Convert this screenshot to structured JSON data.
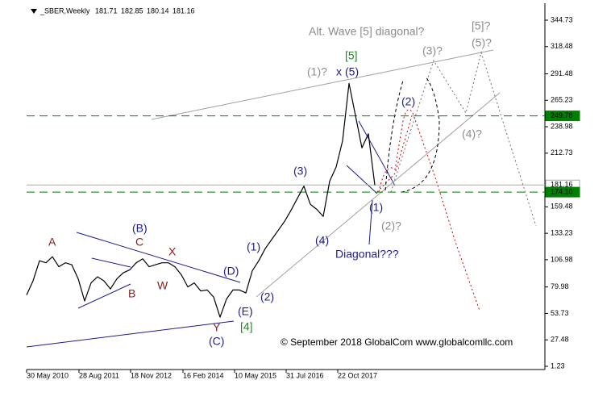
{
  "chart_data": {
    "type": "line",
    "symbol": "_SBER,Weekly",
    "ohlc": [
      181.71,
      182.85,
      180.14,
      181.16
    ],
    "xlim": [
      "2010-05-30",
      "2022-09-25"
    ],
    "xticks": [
      {
        "value": "2010-05-30",
        "label": "30 May 2010"
      },
      {
        "value": "2011-08-28",
        "label": "28 Aug 2011"
      },
      {
        "value": "2012-11-18",
        "label": "18 Nov 2012"
      },
      {
        "value": "2014-02-16",
        "label": "16 Feb 2014"
      },
      {
        "value": "2015-05-10",
        "label": "10 May 2015"
      },
      {
        "value": "2016-07-31",
        "label": "31 Jul 2016"
      },
      {
        "value": "2017-10-22",
        "label": "22 Oct 2017"
      }
    ],
    "ylim": [
      -1.97,
      358.34
    ],
    "yticks": [
      344.73,
      318.48,
      291.48,
      265.23,
      238.98,
      212.73,
      159.48,
      133.23,
      106.98,
      79.98,
      53.73,
      27.48,
      1.23
    ],
    "series": [
      {
        "name": "SBER",
        "color": "#000000",
        "x": [
          "2010-05-30",
          "2010-07-25",
          "2010-09-19",
          "2010-11-14",
          "2011-01-09",
          "2011-03-06",
          "2011-05-01",
          "2011-06-26",
          "2011-08-21",
          "2011-10-16",
          "2011-12-11",
          "2012-02-05",
          "2012-04-01",
          "2012-05-27",
          "2012-07-22",
          "2012-09-16",
          "2012-11-11",
          "2013-01-06",
          "2013-03-03",
          "2013-04-28",
          "2013-06-23",
          "2013-08-18",
          "2013-10-13",
          "2013-12-08",
          "2014-02-02",
          "2014-03-30",
          "2014-05-25",
          "2014-07-20",
          "2014-09-14",
          "2014-11-09",
          "2015-01-04",
          "2015-03-01",
          "2015-04-26",
          "2015-06-21",
          "2015-08-16",
          "2015-10-11",
          "2015-12-06",
          "2016-01-31",
          "2016-03-27",
          "2016-05-22",
          "2016-07-17",
          "2016-09-11",
          "2016-11-06",
          "2017-01-01",
          "2017-02-26",
          "2017-04-23",
          "2017-06-18",
          "2017-08-13",
          "2017-10-08",
          "2017-12-03",
          "2018-01-28",
          "2018-03-25",
          "2018-05-20",
          "2018-07-15",
          "2018-09-09"
        ],
        "values": [
          72,
          86,
          106,
          104,
          110,
          100,
          104,
          102,
          88,
          66,
          84,
          90,
          86,
          78,
          88,
          94,
          97,
          104,
          108,
          100,
          102,
          104,
          104,
          100,
          92,
          80,
          84,
          76,
          77,
          70,
          50,
          68,
          77,
          77,
          74,
          96,
          106,
          118,
          127,
          136,
          145,
          156,
          168,
          180,
          162,
          157,
          150,
          185,
          199,
          225,
          282,
          250,
          218,
          232,
          181
        ]
      }
    ],
    "price_lines": [
      {
        "price": 249.78,
        "color": "#008000",
        "dashed": true
      },
      {
        "price": 181.16,
        "color": "#a8a8a8",
        "dashed": false
      },
      {
        "price": {
          "value": 174.1,
          "label": "174.10"
        },
        "color": "#008000",
        "dashed": true
      }
    ],
    "annotations": [
      "Alt. Wave [5] diagonal?",
      "[5]?",
      "(5)?",
      "(3)?",
      "[5]",
      "(1)?",
      "x",
      "(5)",
      "(2)",
      "(4)?",
      "(3)",
      "(1)",
      "(2)?",
      "(4)",
      "Diagonal???",
      "A",
      "C",
      "X",
      "W",
      "B",
      "(B)",
      "(D)",
      "(1)",
      "(2)",
      "(E)",
      "[4]",
      "Y",
      "(C)",
      "© September 2018 GlobalCom www.globalcomllc.com"
    ]
  }
}
